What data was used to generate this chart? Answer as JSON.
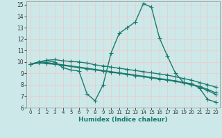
{
  "xlabel": "Humidex (Indice chaleur)",
  "xlim": [
    -0.5,
    23.5
  ],
  "ylim": [
    6,
    15.3
  ],
  "yticks": [
    6,
    7,
    8,
    9,
    10,
    11,
    12,
    13,
    14,
    15
  ],
  "xticks": [
    0,
    1,
    2,
    3,
    4,
    5,
    6,
    7,
    8,
    9,
    10,
    11,
    12,
    13,
    14,
    15,
    16,
    17,
    18,
    19,
    20,
    21,
    22,
    23
  ],
  "background_color": "#cde8e8",
  "grid_color": "#e8d0d0",
  "line_color": "#1a7a6e",
  "line_width": 1.0,
  "marker": "+",
  "marker_size": 4,
  "series": [
    {
      "x": [
        0,
        1,
        2,
        3,
        4,
        5,
        6,
        7,
        8,
        9,
        10,
        11,
        12,
        13,
        14,
        15,
        16,
        17,
        18,
        19,
        20,
        21,
        22,
        23
      ],
      "y": [
        9.8,
        10.0,
        10.1,
        10.0,
        9.5,
        9.3,
        9.2,
        7.2,
        6.6,
        8.0,
        10.8,
        12.5,
        13.0,
        13.5,
        15.1,
        14.8,
        12.1,
        10.5,
        9.0,
        8.2,
        8.1,
        7.7,
        6.7,
        6.5
      ]
    },
    {
      "x": [
        0,
        1,
        2,
        3,
        4,
        5,
        6,
        7,
        8,
        9,
        10,
        11,
        12,
        13,
        14,
        15,
        16,
        17,
        18,
        19,
        20,
        21,
        22,
        23
      ],
      "y": [
        9.8,
        10.0,
        10.15,
        10.2,
        10.1,
        10.05,
        10.0,
        9.9,
        9.75,
        9.65,
        9.55,
        9.45,
        9.35,
        9.25,
        9.15,
        9.05,
        8.95,
        8.85,
        8.7,
        8.55,
        8.4,
        8.2,
        8.0,
        7.8
      ]
    },
    {
      "x": [
        0,
        1,
        2,
        3,
        4,
        5,
        6,
        7,
        8,
        9,
        10,
        11,
        12,
        13,
        14,
        15,
        16,
        17,
        18,
        19,
        20,
        21,
        22,
        23
      ],
      "y": [
        9.8,
        10.0,
        9.95,
        9.85,
        9.75,
        9.65,
        9.55,
        9.45,
        9.35,
        9.25,
        9.15,
        9.05,
        8.95,
        8.85,
        8.75,
        8.65,
        8.55,
        8.45,
        8.35,
        8.2,
        8.05,
        7.85,
        7.6,
        7.3
      ]
    },
    {
      "x": [
        0,
        1,
        2,
        3,
        4,
        5,
        6,
        7,
        8,
        9,
        10,
        11,
        12,
        13,
        14,
        15,
        16,
        17,
        18,
        19,
        20,
        21,
        22,
        23
      ],
      "y": [
        9.8,
        9.9,
        9.85,
        9.8,
        9.7,
        9.6,
        9.5,
        9.4,
        9.3,
        9.2,
        9.1,
        9.0,
        8.9,
        8.8,
        8.7,
        8.6,
        8.5,
        8.4,
        8.3,
        8.15,
        8.0,
        7.8,
        7.5,
        7.15
      ]
    }
  ]
}
